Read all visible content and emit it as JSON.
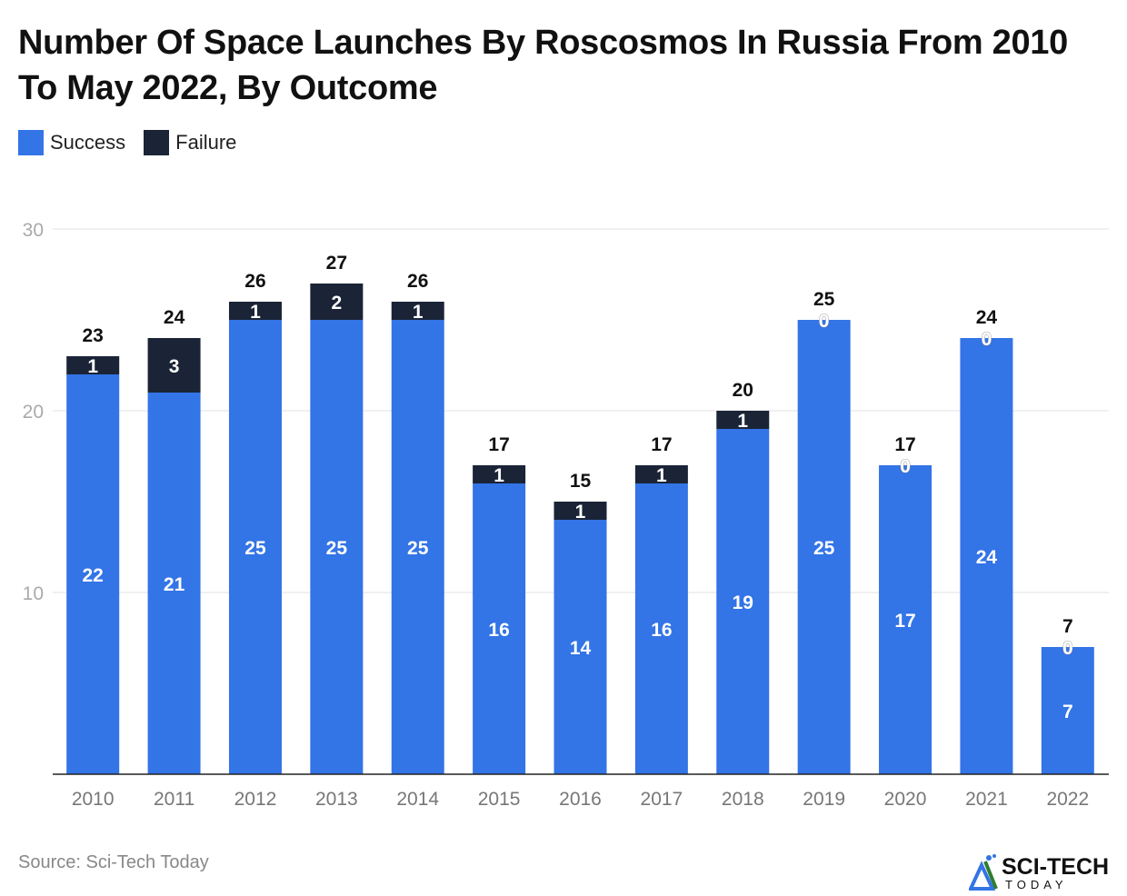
{
  "chart_data": {
    "type": "bar",
    "stacked": true,
    "title": "Number Of Space Launches By Roscosmos In Russia From 2010 To May 2022, By Outcome",
    "categories": [
      "2010",
      "2011",
      "2012",
      "2013",
      "2014",
      "2015",
      "2016",
      "2017",
      "2018",
      "2019",
      "2020",
      "2021",
      "2022"
    ],
    "series": [
      {
        "name": "Success",
        "color": "#3374e6",
        "values": [
          22,
          21,
          25,
          25,
          25,
          16,
          14,
          16,
          19,
          25,
          17,
          24,
          7
        ]
      },
      {
        "name": "Failure",
        "color": "#1a2436",
        "values": [
          1,
          3,
          1,
          2,
          1,
          1,
          1,
          1,
          1,
          0,
          0,
          0,
          0
        ]
      }
    ],
    "totals": [
      23,
      24,
      26,
      27,
      26,
      17,
      15,
      17,
      20,
      25,
      17,
      24,
      7
    ],
    "ylim": [
      0,
      30
    ],
    "yticks": [
      10,
      20,
      30
    ],
    "grid": true,
    "legend": "top-left",
    "xlabel": "",
    "ylabel": ""
  },
  "source": "Source: Sci-Tech Today",
  "logo": {
    "text": "SCI-TECH",
    "subtext": "TODAY"
  }
}
